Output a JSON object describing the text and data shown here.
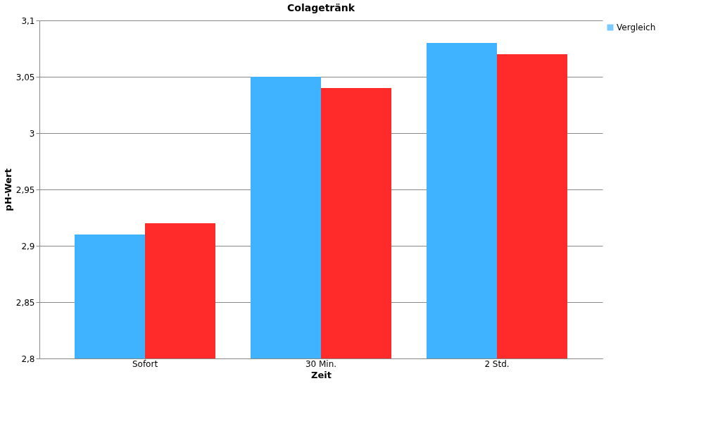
{
  "chart_data": {
    "type": "bar",
    "title": "Colagetränk",
    "xlabel": "Zeit",
    "ylabel": "pH-Wert",
    "categories": [
      "Sofort",
      "30 Min.",
      "2 Std."
    ],
    "series": [
      {
        "name": "Vergleich",
        "color": "#3fb3ff",
        "values": [
          2.91,
          3.05,
          3.08
        ]
      },
      {
        "color": "#ff2b2b",
        "values": [
          2.92,
          3.04,
          3.07
        ]
      }
    ],
    "ylim": [
      2.8,
      3.1
    ],
    "yticks": [
      {
        "value": 2.8,
        "label": "2,8"
      },
      {
        "value": 2.85,
        "label": "2,85"
      },
      {
        "value": 2.9,
        "label": "2,9"
      },
      {
        "value": 2.95,
        "label": "2,95"
      },
      {
        "value": 3.0,
        "label": "3"
      },
      {
        "value": 3.05,
        "label": "3,05"
      },
      {
        "value": 3.1,
        "label": "3,1"
      }
    ],
    "grid": "y",
    "legend": "right"
  }
}
